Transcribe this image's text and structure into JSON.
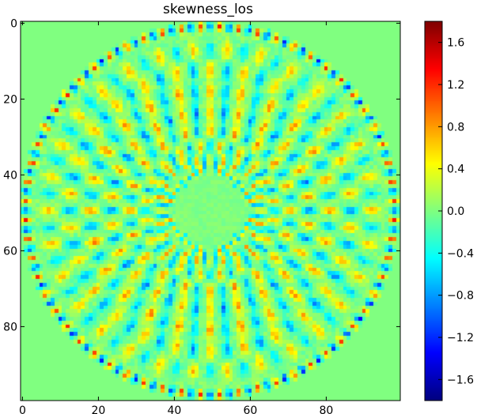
{
  "chart_data": {
    "type": "heatmap",
    "title": "skewness_los",
    "colormap": "jet",
    "background_value": 0.0,
    "x_ticks": [
      "0",
      "20",
      "40",
      "60",
      "80"
    ],
    "x_tick_values": [
      0,
      20,
      40,
      60,
      80
    ],
    "y_ticks": [
      "0",
      "20",
      "40",
      "60",
      "80"
    ],
    "y_tick_values": [
      0,
      20,
      40,
      60,
      80
    ],
    "xlim": [
      -0.5,
      99.5
    ],
    "ylim": [
      99.5,
      -0.5
    ],
    "grid_size": 100,
    "colorbar": {
      "range": [
        -1.8,
        1.8
      ],
      "ticks": [
        "1.6",
        "1.2",
        "0.8",
        "0.4",
        "0.0",
        "−0.4",
        "−0.8",
        "−1.2",
        "−1.6"
      ],
      "tick_values": [
        1.6,
        1.2,
        0.8,
        0.4,
        0.0,
        -0.4,
        -0.8,
        -1.2,
        -1.6
      ]
    },
    "pattern": {
      "center": [
        49.5,
        49.5
      ],
      "inner_quiet_radius": 9,
      "outer_radius": 50,
      "rings": [
        {
          "radius": 10.5,
          "count": 28,
          "amplitude": 0.7,
          "sign": 1
        },
        {
          "radius": 13.5,
          "count": 24,
          "amplitude": 0.75,
          "sign": 1
        },
        {
          "radius": 17.0,
          "count": 20,
          "amplitude": 0.85,
          "sign": -1
        },
        {
          "radius": 21.0,
          "count": 20,
          "amplitude": 0.9,
          "sign": 1
        },
        {
          "radius": 26.0,
          "count": 22,
          "amplitude": 0.95,
          "sign": -1
        },
        {
          "radius": 31.5,
          "count": 24,
          "amplitude": 0.9,
          "sign": 1
        },
        {
          "radius": 37.0,
          "count": 26,
          "amplitude": 0.85,
          "sign": -1
        },
        {
          "radius": 42.5,
          "count": 30,
          "amplitude": 0.7,
          "sign": 1
        },
        {
          "radius": 48.5,
          "count": 60,
          "amplitude": 1.4,
          "sign": -1
        }
      ]
    }
  }
}
